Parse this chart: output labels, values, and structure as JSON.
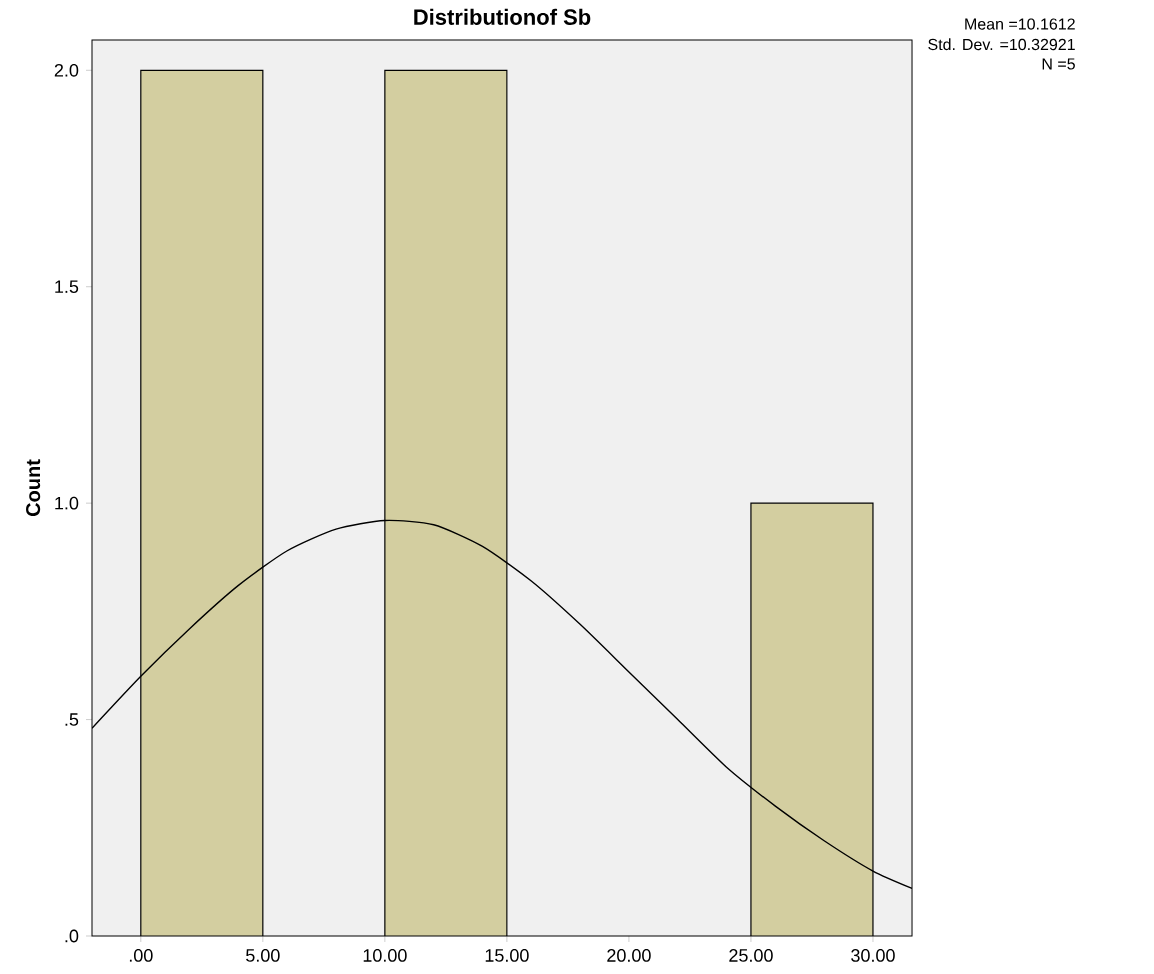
{
  "chart_data": {
    "type": "histogram",
    "title": "Distributionof Sb",
    "ylabel": "Count",
    "bins": [
      0,
      5,
      10,
      15,
      20,
      25,
      30
    ],
    "values": [
      2,
      0,
      2,
      0,
      0,
      1
    ],
    "color": "#d3cea0",
    "series": [
      {
        "type": "line",
        "color": "#000000",
        "x": [
          -2,
          0,
          2,
          4,
          6,
          8,
          10,
          12,
          14,
          16,
          18,
          20,
          22,
          24,
          26,
          28,
          30,
          31.6
        ],
        "values": [
          0.48,
          0.6,
          0.71,
          0.81,
          0.89,
          0.94,
          0.96,
          0.95,
          0.9,
          0.82,
          0.72,
          0.61,
          0.5,
          0.39,
          0.3,
          0.22,
          0.15,
          0.11
        ]
      }
    ],
    "xlim": [
      -2,
      31.6
    ],
    "ylim": [
      0,
      2.07
    ],
    "xticks": [
      {
        "value": 0,
        "label": ".00"
      },
      {
        "value": 5,
        "label": "5.00"
      },
      {
        "value": 10,
        "label": "10.00"
      },
      {
        "value": 15,
        "label": "15.00"
      },
      {
        "value": 20,
        "label": "20.00"
      },
      {
        "value": 25,
        "label": "25.00"
      },
      {
        "value": 30,
        "label": "30.00"
      }
    ],
    "yticks": [
      {
        "value": 0,
        "label": ".0"
      },
      {
        "value": 0.5,
        "label": ".5"
      },
      {
        "value": 1,
        "label": "1.0"
      },
      {
        "value": 1.5,
        "label": "1.5"
      },
      {
        "value": 2,
        "label": "2.0"
      }
    ],
    "annotations": [
      "Mean =10.1612",
      "Std. Dev. =10.32921",
      "N =5"
    ]
  }
}
